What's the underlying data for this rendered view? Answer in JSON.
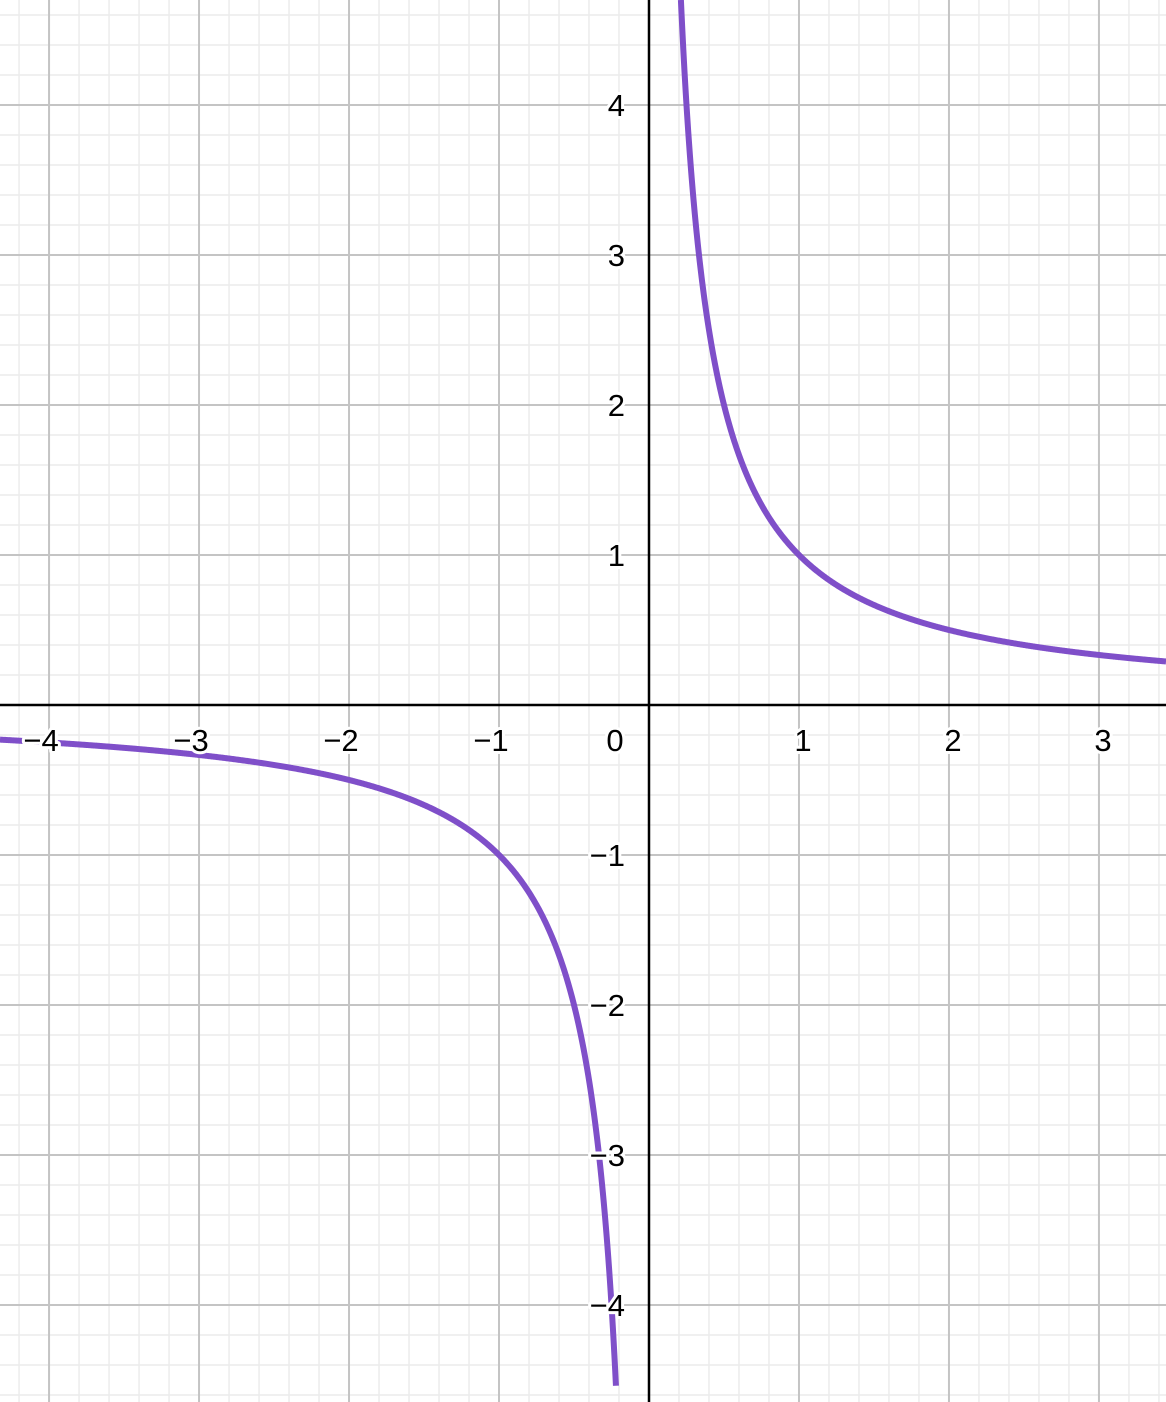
{
  "chart_data": {
    "type": "line",
    "title": "",
    "xlabel": "",
    "ylabel": "",
    "xlim": [
      -4.327,
      3.447
    ],
    "ylim": [
      -4.647,
      4.7
    ],
    "grid": true,
    "minor_grid_step": 0.2,
    "major_grid_step": 1,
    "x_tick_labels": [
      "−4",
      "−3",
      "−2",
      "−1",
      "0",
      "1",
      "2",
      "3"
    ],
    "x_tick_values": [
      -4,
      -3,
      -2,
      -1,
      0,
      1,
      2,
      3
    ],
    "y_tick_labels": [
      "4",
      "3",
      "2",
      "1",
      "−1",
      "−2",
      "−3",
      "−4"
    ],
    "y_tick_values": [
      4,
      3,
      2,
      1,
      -1,
      -2,
      -3,
      -4
    ],
    "series": [
      {
        "function": "y = 1/x",
        "color": "#7f4fc9",
        "points": [
          [
            -4,
            -0.25
          ],
          [
            -3,
            -0.333
          ],
          [
            -2,
            -0.5
          ],
          [
            -1,
            -1
          ],
          [
            -0.5,
            -2
          ],
          [
            -0.25,
            -4
          ],
          [
            0.25,
            4
          ],
          [
            0.5,
            2
          ],
          [
            1,
            1
          ],
          [
            2,
            0.5
          ],
          [
            3,
            0.333
          ]
        ]
      }
    ],
    "colors": {
      "major_grid": "#c4c4c4",
      "minor_grid": "#ececec",
      "axis": "#000000"
    }
  }
}
